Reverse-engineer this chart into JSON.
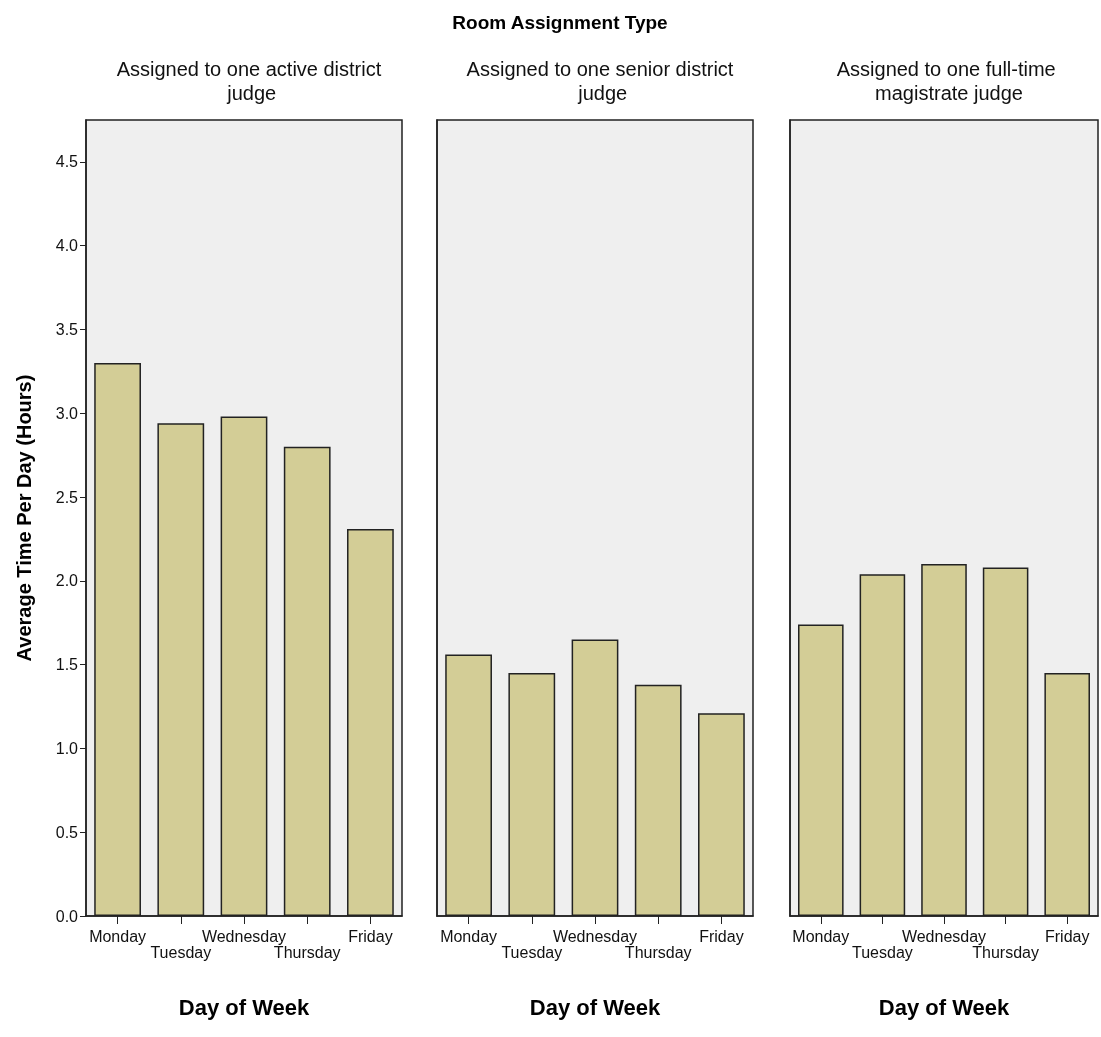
{
  "chart_data": [
    {
      "type": "bar",
      "subtitle": "Assigned to one active district judge",
      "xlabel": "Day of Week",
      "ylabel": "Average Time Per Day (Hours)",
      "categories": [
        "Monday",
        "Tuesday",
        "Wednesday",
        "Thursday",
        "Friday"
      ],
      "values": [
        3.3,
        2.94,
        2.98,
        2.8,
        2.31
      ],
      "color": "#d3cd96",
      "ylim": [
        0,
        4.75
      ],
      "yticks": [
        {
          "value": 0,
          "label": "0.0"
        },
        0.5,
        {
          "value": 1,
          "label": "1.0"
        },
        1.5,
        {
          "value": 2,
          "label": "2.0"
        },
        2.5,
        {
          "value": 3,
          "label": "3.0"
        },
        3.5,
        {
          "value": 4,
          "label": "4.0"
        },
        4.5
      ],
      "grid": false
    },
    {
      "type": "bar",
      "title": "Room Assignment Type",
      "subtitle": "Assigned to one senior district judge",
      "xlabel": "Day of Week",
      "categories": [
        "Monday",
        "Tuesday",
        "Wednesday",
        "Thursday",
        "Friday"
      ],
      "values": [
        1.56,
        1.45,
        1.65,
        1.38,
        1.21
      ],
      "color": "#d3cd96",
      "ylim": [
        0,
        4.75
      ],
      "tick_labels": "x",
      "grid": false
    },
    {
      "type": "bar",
      "subtitle": "Assigned to one full-time magistrate judge",
      "xlabel": "Day of Week",
      "categories": [
        "Monday",
        "Tuesday",
        "Wednesday",
        "Thursday",
        "Friday"
      ],
      "values": [
        1.74,
        2.04,
        2.1,
        2.08,
        1.45
      ],
      "color": "#d3cd96",
      "ylim": [
        0,
        4.75
      ],
      "tick_labels": "x",
      "grid": false
    }
  ]
}
